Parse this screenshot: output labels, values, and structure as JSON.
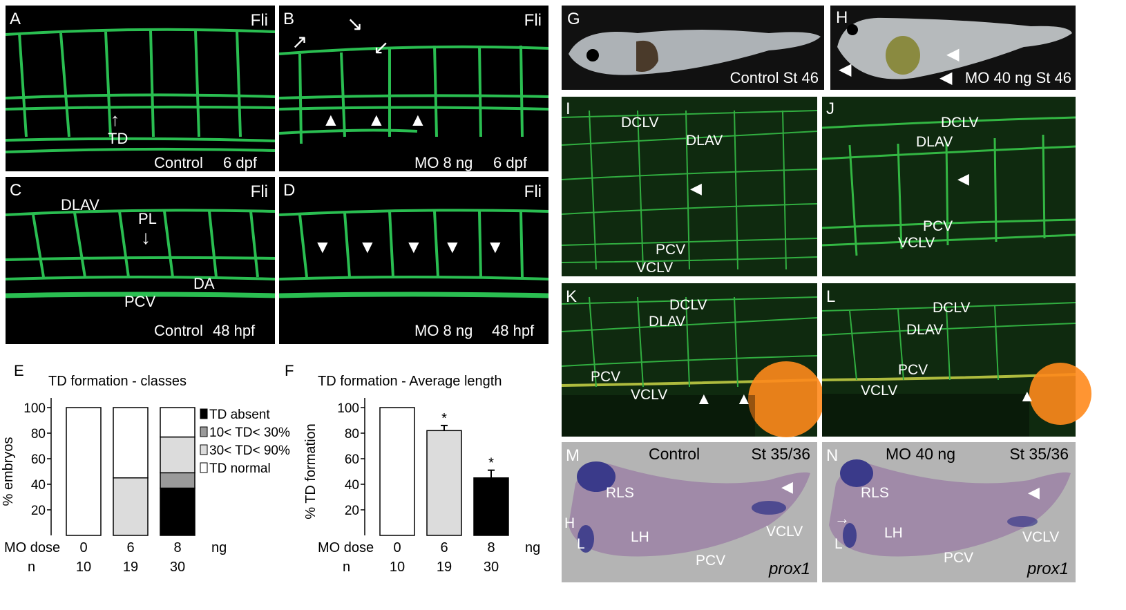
{
  "panels": {
    "A": {
      "letter": "A",
      "marker": "Fli",
      "arrow_label": "TD",
      "condition": "Control",
      "time": "6 dpf"
    },
    "B": {
      "letter": "B",
      "marker": "Fli",
      "condition": "MO 8 ng",
      "time": "6 dpf"
    },
    "C": {
      "letter": "C",
      "marker": "Fli",
      "dlav": "DLAV",
      "pl": "PL",
      "da": "DA",
      "pcv": "PCV",
      "condition": "Control",
      "time": "48 hpf"
    },
    "D": {
      "letter": "D",
      "marker": "Fli",
      "condition": "MO 8 ng",
      "time": "48 hpf"
    },
    "G": {
      "letter": "G",
      "caption": "Control St 46"
    },
    "H": {
      "letter": "H",
      "caption": "MO 40 ng St 46"
    },
    "I": {
      "letter": "I",
      "dclv": "DCLV",
      "dlav": "DLAV",
      "pcv": "PCV",
      "vclv": "VCLV"
    },
    "J": {
      "letter": "J",
      "dclv": "DCLV",
      "dlav": "DLAV",
      "pcv": "PCV",
      "vclv": "VCLV"
    },
    "K": {
      "letter": "K",
      "dclv": "DCLV",
      "dlav": "DLAV",
      "pcv": "PCV",
      "vclv": "VCLV"
    },
    "L": {
      "letter": "L",
      "dclv": "DCLV",
      "dlav": "DLAV",
      "pcv": "PCV",
      "vclv": "VCLV"
    },
    "M": {
      "letter": "M",
      "condition": "Control",
      "stage": "St 35/36",
      "rls": "RLS",
      "h": "H",
      "l": "L",
      "lh": "LH",
      "pcv": "PCV",
      "vclv": "VCLV",
      "gene": "prox1"
    },
    "N": {
      "letter": "N",
      "condition": "MO 40 ng",
      "stage": "St 35/36",
      "rls": "RLS",
      "lh": "LH",
      "l": "L",
      "pcv": "PCV",
      "vclv": "VCLV",
      "gene": "prox1"
    }
  },
  "chart_data": [
    {
      "letter": "E",
      "type": "bar",
      "stacked": true,
      "title": "TD formation - classes",
      "ylabel": "% embryos",
      "ylim": [
        0,
        100
      ],
      "yticks": [
        "20",
        "40",
        "60",
        "80",
        "100"
      ],
      "dose_label": "MO dose",
      "n_label": "n",
      "unit": "ng",
      "categories": [
        "0",
        "6",
        "8"
      ],
      "n": [
        "10",
        "19",
        "30"
      ],
      "series": [
        {
          "name": "TD absent",
          "color": "#000000",
          "values": [
            0,
            0,
            37
          ]
        },
        {
          "name": "10< TD< 30%",
          "color": "#9a9a9a",
          "values": [
            0,
            0,
            12
          ]
        },
        {
          "name": "30< TD< 90%",
          "color": "#dcdcdc",
          "values": [
            0,
            45,
            28
          ]
        },
        {
          "name": "TD normal",
          "color": "#ffffff",
          "values": [
            100,
            55,
            23
          ]
        }
      ]
    },
    {
      "letter": "F",
      "type": "bar",
      "title": "TD formation - Average length",
      "ylabel": "% TD formation",
      "ylim": [
        0,
        100
      ],
      "yticks": [
        "20",
        "40",
        "60",
        "80",
        "100"
      ],
      "dose_label": "MO dose",
      "n_label": "n",
      "unit": "ng",
      "categories": [
        "0",
        "6",
        "8"
      ],
      "n": [
        "10",
        "19",
        "30"
      ],
      "values": [
        100,
        82,
        45
      ],
      "errors": [
        0,
        4,
        6
      ],
      "colors": [
        "#ffffff",
        "#dcdcdc",
        "#000000"
      ],
      "significance": [
        "",
        "*",
        "*"
      ]
    }
  ]
}
